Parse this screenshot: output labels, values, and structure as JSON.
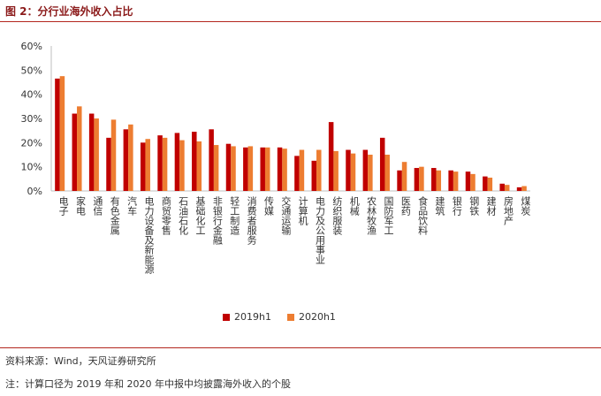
{
  "header": {
    "title": "图 2：分行业海外收入占比"
  },
  "footer": {
    "source": "资料来源：Wind，天风证券研究所",
    "note": "注：计算口径为 2019 年和 2020 年中报中均披露海外收入的个股"
  },
  "colors": {
    "s2019": "#c00000",
    "s2020": "#ed7d31",
    "axis": "#bfbfbf"
  },
  "chart_data": {
    "type": "bar",
    "title": "",
    "xlabel": "",
    "ylabel": "",
    "ylim": [
      0,
      60
    ],
    "yticks": [
      "0%",
      "10%",
      "20%",
      "30%",
      "40%",
      "50%",
      "60%"
    ],
    "grid": false,
    "legend": "bottom",
    "categories": [
      "电子",
      "家电",
      "通信",
      "有色金属",
      "汽车",
      "电力设备及新能源",
      "商贸零售",
      "石油石化",
      "基础化工",
      "非银行金融",
      "轻工制造",
      "消费者服务",
      "传媒",
      "交通运输",
      "计算机",
      "电力及公用事业",
      "纺织服装",
      "机械",
      "农林牧渔",
      "国防军工",
      "医药",
      "食品饮料",
      "建筑",
      "银行",
      "钢铁",
      "建材",
      "房地产",
      "煤炭"
    ],
    "series": [
      {
        "name": "2019h1",
        "values": [
          46.5,
          32.0,
          32.0,
          22.0,
          25.5,
          20.0,
          23.0,
          24.0,
          24.5,
          25.5,
          19.5,
          18.0,
          18.0,
          18.0,
          14.5,
          12.5,
          28.5,
          17.0,
          17.0,
          22.0,
          8.5,
          9.5,
          9.5,
          8.5,
          8.0,
          6.0,
          3.0,
          1.5
        ]
      },
      {
        "name": "2020h1",
        "values": [
          47.5,
          35.0,
          30.0,
          29.5,
          27.5,
          21.5,
          22.0,
          21.0,
          20.5,
          19.0,
          18.5,
          18.5,
          18.0,
          17.5,
          17.0,
          17.0,
          16.5,
          15.5,
          15.0,
          15.0,
          12.0,
          10.0,
          8.5,
          8.0,
          7.0,
          5.5,
          2.5,
          2.0
        ]
      }
    ]
  }
}
